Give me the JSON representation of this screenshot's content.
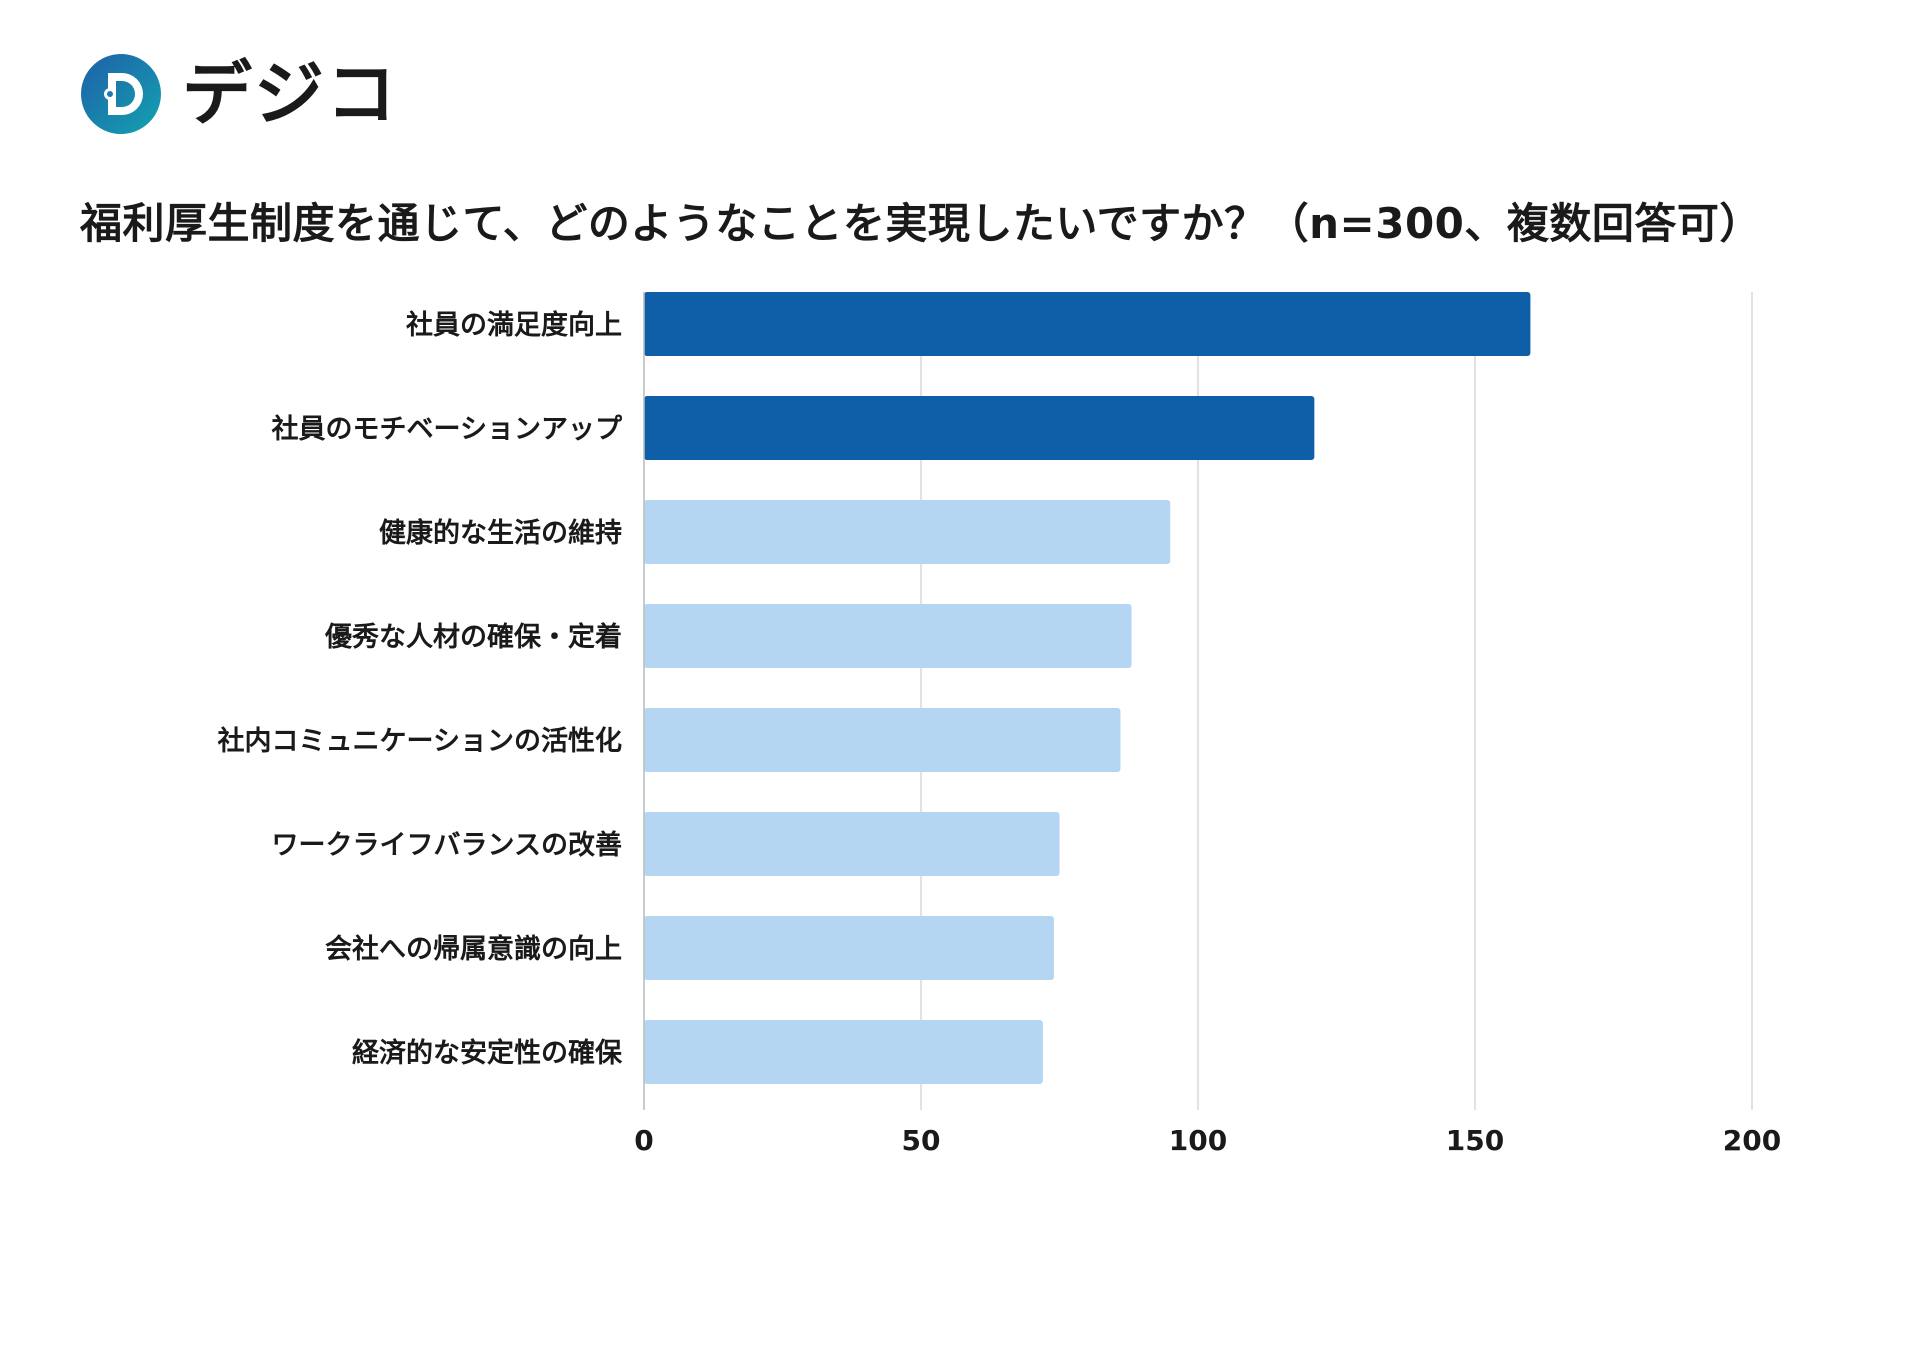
{
  "brand": {
    "name": "デジコ",
    "colors": {
      "logo_gradient_start": "#1f5fa8",
      "logo_gradient_end": "#13a3b0",
      "logo_dot_teal": "#18a7b5",
      "logo_dot_blue": "#1e6bc4"
    }
  },
  "chart_data": {
    "type": "bar",
    "orientation": "horizontal",
    "title": "福利厚生制度を通じて、どのようなことを実現したいですか？（n=300、複数回答可）",
    "categories": [
      "社員の満足度向上",
      "社員のモチベーションアップ",
      "健康的な生活の維持",
      "優秀な人材の確保・定着",
      "社内コミュニケーションの活性化",
      "ワークライフバランスの改善",
      "会社への帰属意識の向上",
      "経済的な安定性の確保"
    ],
    "values": [
      160,
      121,
      95,
      88,
      86,
      75,
      74,
      72
    ],
    "highlighted": [
      true,
      true,
      false,
      false,
      false,
      false,
      false,
      false
    ],
    "colors": {
      "highlight": "#0f5ea8",
      "normal": "#b5d6f3",
      "grid": "#d9d9d9"
    },
    "xlim": [
      0,
      200
    ],
    "xticks": [
      0,
      50,
      100,
      150,
      200
    ],
    "xlabel": "",
    "ylabel": "",
    "grid": true
  }
}
